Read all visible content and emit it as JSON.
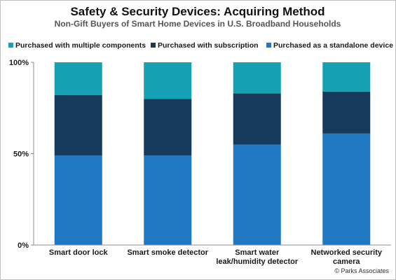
{
  "chart_data": {
    "type": "bar",
    "stacked": true,
    "title": "Safety & Security Devices: Acquiring Method",
    "subtitle": "Non-Gift Buyers of Smart Home Devices  in U.S. Broadband Households",
    "categories": [
      [
        "Smart door lock"
      ],
      [
        "Smart smoke detector"
      ],
      [
        "Smart water",
        "leak/humidity detector"
      ],
      [
        "Networked security",
        "camera"
      ]
    ],
    "series": [
      {
        "name": "Purchased as a standalone device",
        "color": "#1f78c1",
        "values": [
          49,
          49,
          55,
          61
        ]
      },
      {
        "name": "Purchased with subscription",
        "color": "#163a5c",
        "values": [
          33,
          31,
          28,
          23
        ]
      },
      {
        "name": "Purchased with multiple components",
        "color": "#16a0b4",
        "values": [
          18,
          20,
          17,
          16
        ]
      }
    ],
    "legend_order": [
      2,
      1,
      0
    ],
    "y_ticks": [
      "0%",
      "50%",
      "100%"
    ],
    "ylim": [
      0,
      100
    ],
    "legend_position": "top",
    "grid": false
  },
  "source": "© Parks Associates"
}
